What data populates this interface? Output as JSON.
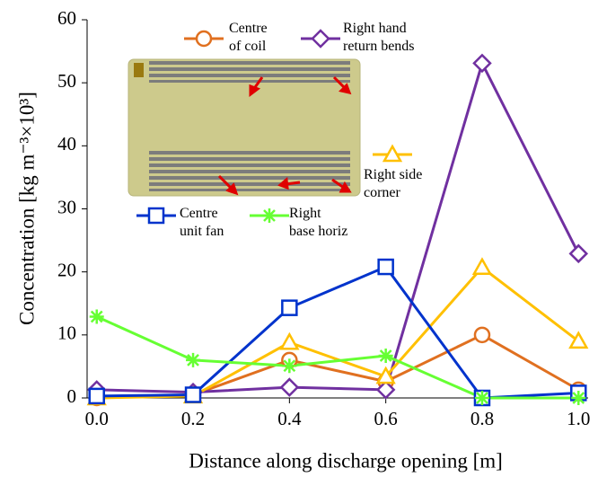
{
  "chart_data": {
    "type": "line",
    "x_label": "Distance along discharge opening [m]",
    "y_label": "Concentration [kg m⁻³×10³]",
    "x": [
      0,
      0.2,
      0.4,
      0.6,
      0.8,
      1.0
    ],
    "xlim": [
      -0.02,
      1.02
    ],
    "xticks": [
      {
        "value": 0,
        "label": "0.0"
      },
      0.2,
      0.4,
      0.6,
      0.8,
      {
        "value": 1,
        "label": "1.0"
      }
    ],
    "ylim": [
      0,
      60
    ],
    "yticks": [
      0,
      10,
      20,
      30,
      40,
      50,
      60
    ],
    "series": [
      {
        "name": "Centre\nof coil",
        "color": "#e07020",
        "marker": "circle",
        "values": [
          0,
          0.5,
          6,
          2.6,
          10,
          1.3
        ]
      },
      {
        "name": "Right hand\nreturn bends",
        "color": "#7030a0",
        "marker": "diamond",
        "values": [
          1.3,
          0.9,
          1.7,
          1.3,
          53.1,
          22.9
        ]
      },
      {
        "name": "Right side\ncorner",
        "color": "#ffc000",
        "marker": "triangle",
        "values": [
          0,
          0.3,
          8.8,
          3.4,
          20.7,
          9
        ]
      },
      {
        "name": "Centre\nunit fan",
        "color": "#0033cc",
        "marker": "square",
        "values": [
          0.3,
          0.5,
          14.3,
          20.8,
          0,
          0.8
        ]
      },
      {
        "name": "Right\nbase horiz",
        "color": "#66ff33",
        "marker": "asterisk",
        "values": [
          12.9,
          6,
          5.1,
          6.7,
          0,
          0
        ]
      }
    ]
  }
}
